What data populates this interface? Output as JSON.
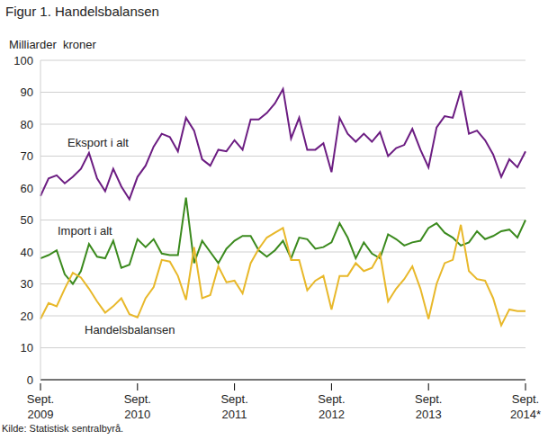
{
  "chart_data": {
    "type": "line",
    "title": "Figur 1. Handelsbalansen",
    "y_label": "Milliarder  kroner",
    "source": "Kilde: Statistisk sentralbyrå.",
    "categories": [
      "Sept. 2009",
      null,
      null,
      null,
      null,
      null,
      null,
      null,
      null,
      null,
      null,
      null,
      "Sept. 2010",
      null,
      null,
      null,
      null,
      null,
      null,
      null,
      null,
      null,
      null,
      null,
      "Sept. 2011",
      null,
      null,
      null,
      null,
      null,
      null,
      null,
      null,
      null,
      null,
      null,
      "Sept. 2012",
      null,
      null,
      null,
      null,
      null,
      null,
      null,
      null,
      null,
      null,
      null,
      "Sept. 2013",
      null,
      null,
      null,
      null,
      null,
      null,
      null,
      null,
      null,
      null,
      null,
      "Sept. 2014*"
    ],
    "series": [
      {
        "name": "Eksport i alt",
        "color": "#6c1d82",
        "values": [
          57.5,
          63,
          64,
          61.5,
          63.5,
          66,
          71,
          63,
          59,
          66,
          60.5,
          56.5,
          63.5,
          67,
          73,
          77,
          76,
          71.5,
          82,
          78,
          69,
          67,
          72,
          71.5,
          75,
          72,
          81.5,
          81.5,
          83.5,
          86.5,
          91,
          75.5,
          82,
          72,
          72,
          74,
          65,
          82,
          77,
          74.5,
          77,
          74.5,
          77.5,
          70,
          72.5,
          73.5,
          78.5,
          72,
          66.5,
          79,
          82.5,
          82,
          90.5,
          77,
          78,
          75,
          70.5,
          63.5,
          69,
          66.5,
          71.5
        ]
      },
      {
        "name": "Import i alt",
        "color": "#3b8a1e",
        "values": [
          38,
          39,
          40.5,
          33,
          30,
          34,
          42.5,
          38.5,
          38,
          43.5,
          35,
          36,
          44,
          41.5,
          44,
          39.5,
          39,
          39,
          57,
          36.5,
          43.5,
          40,
          36.5,
          41,
          43.5,
          45,
          45,
          40.5,
          38.5,
          40.5,
          43.5,
          38,
          44.5,
          44,
          41,
          41.5,
          43,
          49,
          44.5,
          38,
          43,
          39.5,
          38,
          45.5,
          44,
          42,
          43,
          43.5,
          47.5,
          49,
          46,
          44.5,
          42,
          43,
          46.5,
          44,
          45,
          46.5,
          47,
          44.5,
          50
        ]
      },
      {
        "name": "Handelsbalansen",
        "color": "#e8b82a",
        "values": [
          19,
          24,
          23,
          28.5,
          33.5,
          32,
          28.5,
          24.5,
          21,
          23,
          25.5,
          20.5,
          19.5,
          25.5,
          29,
          37.5,
          37,
          32.5,
          25,
          41.5,
          25.5,
          26.5,
          35.5,
          30.5,
          31,
          27,
          36.5,
          41,
          44.5,
          46,
          47.5,
          37.5,
          37.5,
          28,
          31,
          32.5,
          22,
          32.5,
          32.5,
          36.5,
          34,
          35,
          39.5,
          24.5,
          28.5,
          31.5,
          35.5,
          28.5,
          19,
          30,
          36.5,
          37.5,
          48.5,
          34,
          31.5,
          31,
          25.5,
          17,
          22,
          21.5,
          21.5
        ]
      }
    ],
    "ylim": [
      0,
      100
    ],
    "yticks": [
      0,
      10,
      20,
      30,
      40,
      50,
      60,
      70,
      80,
      90,
      100
    ],
    "grid": true
  }
}
